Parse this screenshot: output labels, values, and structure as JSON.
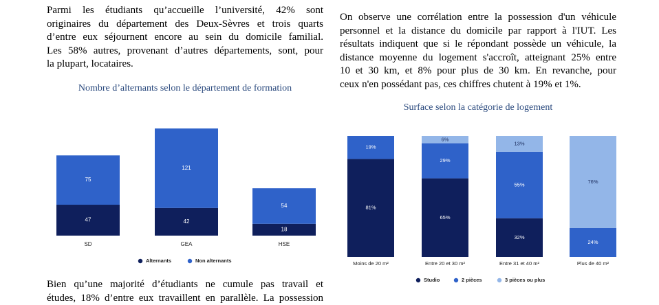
{
  "left_paragraph_top": {
    "lines": [
      "Parmi les étudiants qu’accueille l’université, 42% sont",
      "originaires du département des Deux-Sèvres et trois quarts",
      "d’entre eux séjournent encore au sein du domicile familial.",
      "Les 58% autres, provenant d’autres départements, sont, pour",
      "la plupart, locataires."
    ]
  },
  "left_paragraph_bottom": {
    "lines": [
      "Bien qu’une majorité d’étudiants ne cumule pas travail et",
      "études, 18% d’entre eux travaillent en parallèle. La possession"
    ]
  },
  "right_paragraph": {
    "lines": [
      "On observe une corrélation entre la possession d'un véhicule",
      "personnel et la distance du domicile par rapport à l'IUT. Les",
      "résultats indiquent que si le répondant possède un véhicule, la",
      "distance moyenne du logement s'accroît, atteignant 25% entre",
      "10 et 30 km, et 8% pour plus de 30 km. En revanche, pour",
      "ceux n'en possédant pas, ces chiffres chutent à 19% et 1%."
    ]
  },
  "colors": {
    "dark_navy": "#0f1f5c",
    "medium_blue": "#2f62c9",
    "light_blue": "#93b6e8",
    "title_blue": "#2b4a7e"
  },
  "chart_data": [
    {
      "type": "bar",
      "stacked": true,
      "title": "Nombre d’alternants selon le département de formation",
      "categories": [
        "SD",
        "GEA",
        "HSE"
      ],
      "series": [
        {
          "name": "Alternants",
          "values": [
            47,
            42,
            18
          ],
          "color": "#0f1f5c"
        },
        {
          "name": "Non alternants",
          "values": [
            75,
            121,
            54
          ],
          "color": "#2f62c9"
        }
      ],
      "ylim": [
        0,
        163
      ],
      "legend": "bottom",
      "grid": false
    },
    {
      "type": "bar",
      "stacked": true,
      "percent": true,
      "title": "Surface selon la catégorie de logement",
      "categories": [
        "Moins de 20 m²",
        "Entre 20 et 30 m²",
        "Entre 31 et 40 m²",
        "Plus de 40 m²"
      ],
      "series": [
        {
          "name": "Studio",
          "values": [
            81,
            65,
            32,
            0
          ],
          "labels": [
            "81%",
            "65%",
            "32%",
            ""
          ],
          "color": "#0f1f5c"
        },
        {
          "name": "2 pièces",
          "values": [
            19,
            29,
            55,
            24
          ],
          "labels": [
            "19%",
            "29%",
            "55%",
            "24%"
          ],
          "color": "#2f62c9"
        },
        {
          "name": "3 pièces ou plus",
          "values": [
            0,
            6,
            13,
            76
          ],
          "labels": [
            "",
            "6%",
            "13%",
            "76%"
          ],
          "color": "#93b6e8"
        }
      ],
      "ylim": [
        0,
        100
      ],
      "legend": "bottom",
      "grid": false
    }
  ]
}
